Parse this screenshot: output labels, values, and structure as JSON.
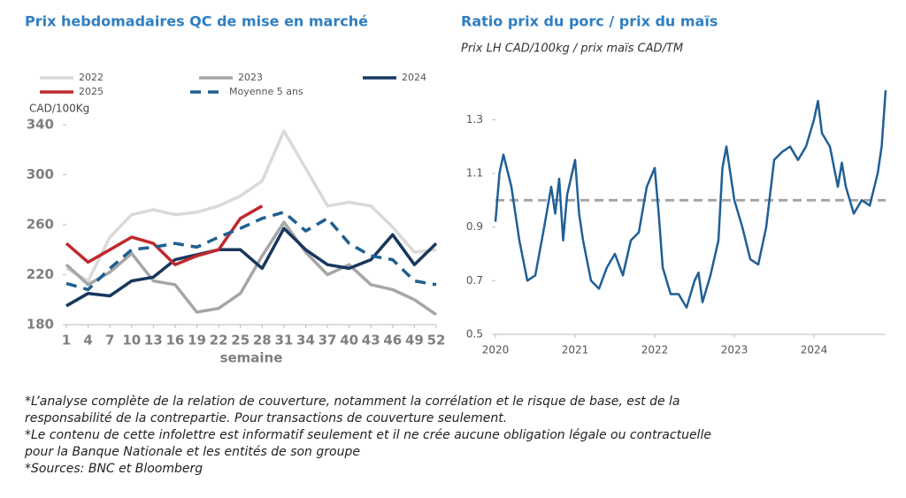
{
  "chart_data": [
    {
      "type": "line",
      "title": "Prix hebdomadaires QC de mise en marché",
      "y_label": "CAD/100Kg",
      "x_label": "semaine",
      "x": [
        1,
        4,
        7,
        10,
        13,
        16,
        19,
        22,
        25,
        28,
        31,
        34,
        37,
        40,
        43,
        46,
        49,
        52
      ],
      "xlim": [
        1,
        52
      ],
      "xticks": [
        1,
        4,
        7,
        10,
        13,
        16,
        19,
        22,
        25,
        28,
        31,
        34,
        37,
        40,
        43,
        46,
        49,
        52
      ],
      "ylim": [
        180,
        340
      ],
      "yticks": [
        180,
        220,
        260,
        300,
        340
      ],
      "series": [
        {
          "name": "2022",
          "color": "#d9d9d9",
          "values": [
            225,
            215,
            250,
            268,
            272,
            268,
            270,
            275,
            283,
            295,
            335,
            305,
            275,
            278,
            275,
            258,
            238,
            240
          ]
        },
        {
          "name": "2023",
          "color": "#a6a6a6",
          "values": [
            228,
            212,
            222,
            237,
            215,
            212,
            190,
            193,
            205,
            235,
            262,
            238,
            220,
            228,
            212,
            208,
            200,
            188
          ]
        },
        {
          "name": "2024",
          "color": "#17375e",
          "values": [
            195,
            205,
            203,
            215,
            218,
            232,
            236,
            240,
            240,
            225,
            257,
            240,
            228,
            225,
            232,
            252,
            228,
            245
          ]
        },
        {
          "name": "2025",
          "color": "#c0282d",
          "values": [
            245,
            230,
            240,
            250,
            245,
            228,
            235,
            240,
            265,
            275,
            null,
            null,
            null,
            null,
            null,
            null,
            null,
            null
          ]
        },
        {
          "name": "Moyenne 5 ans",
          "color": "#1f5f8f",
          "dashed": true,
          "values": [
            213,
            208,
            225,
            240,
            242,
            245,
            242,
            250,
            257,
            265,
            270,
            255,
            265,
            245,
            235,
            232,
            215,
            212
          ]
        }
      ]
    },
    {
      "type": "line",
      "title": "Ratio prix du porc / prix du maïs",
      "subtitle": "Prix LH CAD/100kg / prix maïs CAD/TM",
      "x": [
        2020.0,
        2020.05,
        2020.1,
        2020.2,
        2020.3,
        2020.4,
        2020.5,
        2020.6,
        2020.7,
        2020.75,
        2020.8,
        2020.85,
        2020.9,
        2021.0,
        2021.05,
        2021.1,
        2021.2,
        2021.3,
        2021.4,
        2021.5,
        2021.6,
        2021.7,
        2021.8,
        2021.9,
        2022.0,
        2022.05,
        2022.1,
        2022.2,
        2022.3,
        2022.4,
        2022.5,
        2022.55,
        2022.6,
        2022.7,
        2022.8,
        2022.85,
        2022.9,
        2023.0,
        2023.1,
        2023.2,
        2023.3,
        2023.4,
        2023.5,
        2023.6,
        2023.7,
        2023.8,
        2023.9,
        2024.0,
        2024.05,
        2024.1,
        2024.2,
        2024.3,
        2024.35,
        2024.4,
        2024.5,
        2024.6,
        2024.7,
        2024.8,
        2024.85,
        2024.9
      ],
      "values": [
        0.92,
        1.1,
        1.17,
        1.05,
        0.85,
        0.7,
        0.72,
        0.88,
        1.05,
        0.95,
        1.08,
        0.85,
        1.02,
        1.15,
        0.95,
        0.85,
        0.7,
        0.67,
        0.75,
        0.8,
        0.72,
        0.85,
        0.88,
        1.05,
        1.12,
        0.95,
        0.75,
        0.65,
        0.65,
        0.6,
        0.7,
        0.73,
        0.62,
        0.72,
        0.85,
        1.12,
        1.2,
        1.0,
        0.9,
        0.78,
        0.76,
        0.9,
        1.15,
        1.18,
        1.2,
        1.15,
        1.2,
        1.3,
        1.37,
        1.25,
        1.2,
        1.05,
        1.14,
        1.05,
        0.95,
        1.0,
        0.98,
        1.1,
        1.2,
        1.41
      ],
      "color": "#1f5f96",
      "reference_line": 1,
      "reference_color": "#a6a6a6",
      "xlim": [
        2020,
        2024.9
      ],
      "xticks": [
        2020,
        2021,
        2022,
        2023,
        2024
      ],
      "ylim": [
        0.5,
        1.4
      ],
      "yticks": [
        0.5,
        0.7,
        0.9,
        1.1,
        1.3
      ]
    }
  ],
  "notes": [
    "*L’analyse complète de la relation de couverture, notamment la corrélation et le risque de base, est de la",
    "responsabilité de la contrepartie. Pour transactions de couverture seulement.",
    "*Le contenu de cette infolettre est informatif seulement et il ne crée aucune obligation légale ou contractuelle",
    "pour la Banque Nationale et les entités de son groupe",
    "*Sources: BNC et Bloomberg"
  ]
}
